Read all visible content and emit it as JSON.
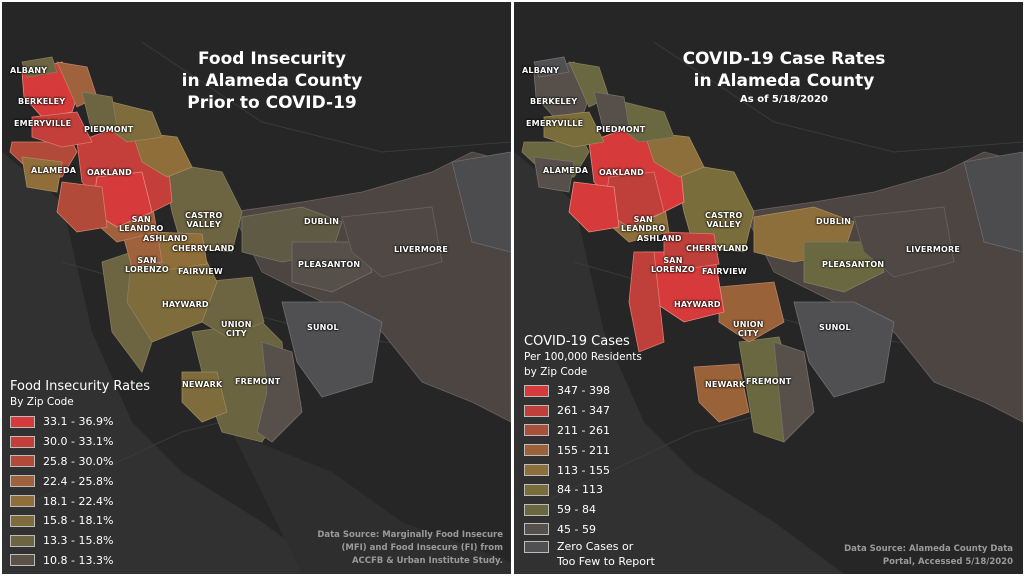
{
  "left_map": {
    "title_lines": [
      "Food Insecurity",
      "in Alameda County",
      "Prior to COVID-19"
    ],
    "legend_title": "Food Insecurity Rates",
    "legend_subtitle": "By Zip Code",
    "legend_items": [
      {
        "label": "33.1 - 36.9%",
        "color": "#d63a3a"
      },
      {
        "label": "30.0 - 33.1%",
        "color": "#c43e3a"
      },
      {
        "label": "25.8 - 30.0%",
        "color": "#b24a3a"
      },
      {
        "label": "22.4 - 25.8%",
        "color": "#a0623c"
      },
      {
        "label": "18.1 - 22.4%",
        "color": "#8f6e3a"
      },
      {
        "label": "15.8 - 18.1%",
        "color": "#7f6c3c"
      },
      {
        "label": "13.3 - 15.8%",
        "color": "#6d6441"
      },
      {
        "label": "10.8 - 13.3%",
        "color": "#5a5247"
      }
    ],
    "source_lines": [
      "Data Source: Marginally Food Insecure",
      "(MFI) and Food Insecure (FI) from",
      "ACCFB & Urban Institute Study."
    ],
    "places": {
      "albany": "ALBANY",
      "berkeley": "BERKELEY",
      "emeryville": "EMERYVILLE",
      "piedmont": "PIEDMONT",
      "alameda": "ALAMEDA",
      "oakland": "OAKLAND",
      "castro_valley": "CASTRO\nVALLEY",
      "san_leandro": "SAN\nLEANDRO",
      "ashland": "ASHLAND",
      "cherryland": "CHERRYLAND",
      "san_lorenzo": "SAN\nLORENZO",
      "fairview": "FAIRVIEW",
      "dublin": "DUBLIN",
      "livermore": "LIVERMORE",
      "pleasanton": "PLEASANTON",
      "hayward": "HAYWARD",
      "union_city": "UNION\nCITY",
      "sunol": "SUNOL",
      "newark": "NEWARK",
      "fremont": "FREMONT"
    }
  },
  "right_map": {
    "title_lines": [
      "COVID-19 Case Rates",
      "in Alameda County"
    ],
    "subtitle": "As of 5/18/2020",
    "legend_title_lines": [
      "COVID-19 Cases",
      "Per 100,000 Residents",
      "by Zip Code"
    ],
    "legend_items": [
      {
        "label": "347 - 398",
        "color": "#d63a3a"
      },
      {
        "label": "261 - 347",
        "color": "#bf3f3a"
      },
      {
        "label": "211 - 261",
        "color": "#a8503a"
      },
      {
        "label": "155 - 211",
        "color": "#9a6238"
      },
      {
        "label": "113 - 155",
        "color": "#8c6f3a"
      },
      {
        "label": "84 - 113",
        "color": "#7a6d3c"
      },
      {
        "label": "59 - 84",
        "color": "#6a6840"
      },
      {
        "label": "45 - 59",
        "color": "#57504a"
      }
    ],
    "zero_item": {
      "label_lines": [
        "Zero Cases or",
        "Too Few to Report"
      ],
      "color": "#505053"
    },
    "source_lines": [
      "Data Source: Alameda County Data",
      "Portal, Accessed 5/18/2020"
    ],
    "places": {
      "albany": "ALBANY",
      "berkeley": "BERKELEY",
      "emeryville": "EMERYVILLE",
      "piedmont": "PIEDMONT",
      "alameda": "ALAMEDA",
      "oakland": "OAKLAND",
      "castro_valley": "CASTRO\nVALLEY",
      "san_leandro": "SAN\nLEANDRO",
      "ashland": "ASHLAND",
      "cherryland": "CHERRYLAND",
      "san_lorenzo": "SAN\nLORENZO",
      "fairview": "FAIRVIEW",
      "dublin": "DUBLIN",
      "livermore": "LIVERMORE",
      "pleasanton": "PLEASANTON",
      "hayward": "HAYWARD",
      "union_city": "UNION\nCITY",
      "sunol": "SUNOL",
      "newark": "NEWARK",
      "fremont": "FREMONT"
    }
  }
}
